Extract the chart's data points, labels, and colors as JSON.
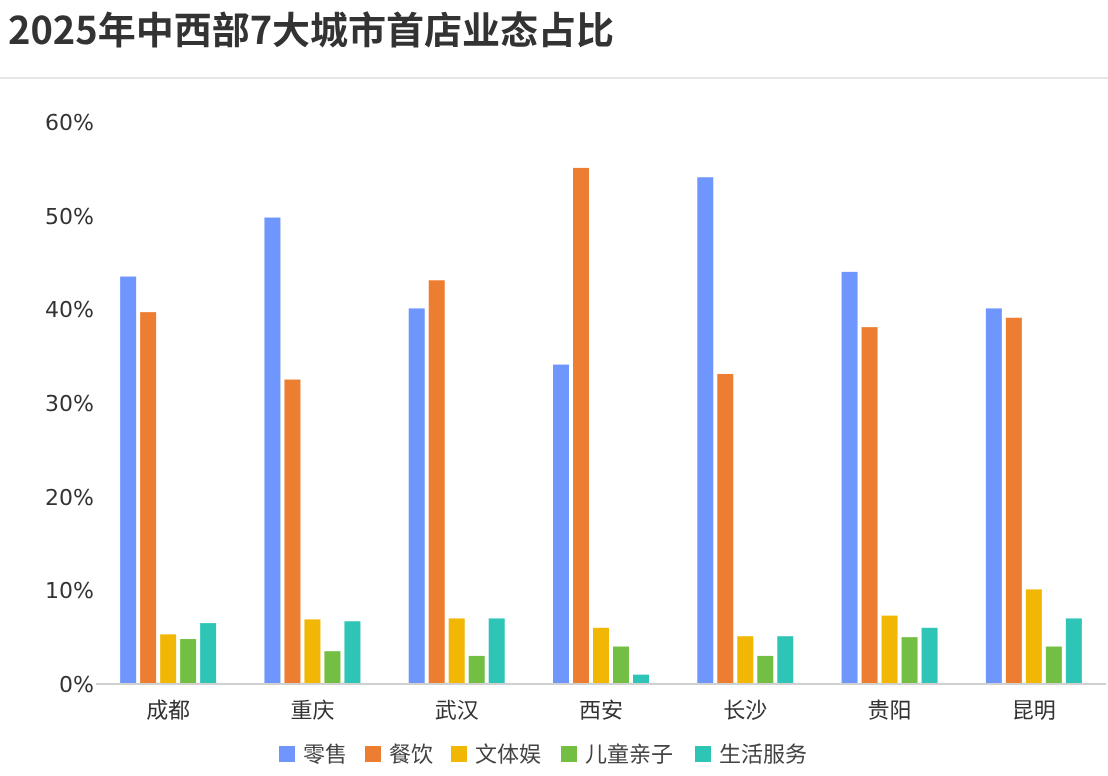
{
  "chart_data": {
    "type": "bar",
    "title": "2025年中西部7大城市首店业态占比",
    "categories": [
      "成都",
      "重庆",
      "武汉",
      "西安",
      "长沙",
      "贵阳",
      "昆明"
    ],
    "series": [
      {
        "name": "零售",
        "color": "#6f96fc",
        "values": [
          43.5,
          49.8,
          40.1,
          34.1,
          54.1,
          44.0,
          40.1
        ]
      },
      {
        "name": "餐饮",
        "color": "#ed7d31",
        "values": [
          39.7,
          32.5,
          43.1,
          55.1,
          33.1,
          38.1,
          39.1
        ]
      },
      {
        "name": "文体娱",
        "color": "#f2b705",
        "values": [
          5.3,
          6.9,
          7.0,
          6.0,
          5.1,
          7.3,
          10.1
        ]
      },
      {
        "name": "儿童亲子",
        "color": "#72bf44",
        "values": [
          4.8,
          3.5,
          3.0,
          4.0,
          3.0,
          5.0,
          4.0
        ]
      },
      {
        "name": "生活服务",
        "color": "#2ec4b6",
        "values": [
          6.5,
          6.7,
          7.0,
          1.0,
          5.1,
          6.0,
          7.0
        ]
      }
    ],
    "ylim": [
      0,
      60
    ],
    "yticks": [
      {
        "value": 0,
        "label": "0%"
      },
      {
        "value": 10,
        "label": "10%"
      },
      {
        "value": 20,
        "label": "20%"
      },
      {
        "value": 30,
        "label": "30%"
      },
      {
        "value": 40,
        "label": "40%"
      },
      {
        "value": 50,
        "label": "50%"
      },
      {
        "value": 60,
        "label": "60%"
      }
    ],
    "grid": false,
    "legend": "bottom"
  }
}
